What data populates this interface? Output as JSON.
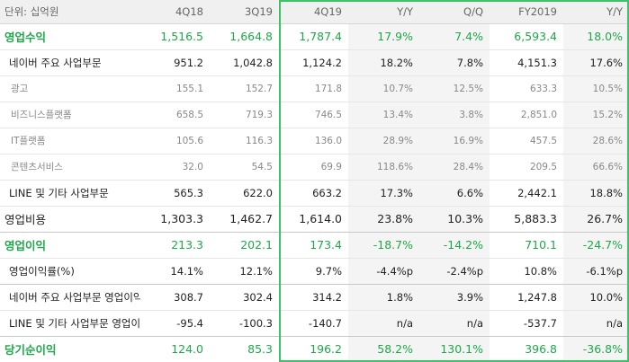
{
  "header": {
    "unit": "단위: 십억원",
    "cols": [
      "4Q18",
      "3Q19",
      "4Q19",
      "Y/Y",
      "Q/Q",
      "FY2019",
      "Y/Y"
    ]
  },
  "rows": [
    {
      "label": "영업수익",
      "values": [
        "1,516.5",
        "1,664.8",
        "1,787.4",
        "17.9%",
        "7.4%",
        "6,593.4",
        "18.0%"
      ]
    },
    {
      "label": "네이버 주요 사업부문",
      "values": [
        "951.2",
        "1,042.8",
        "1,124.2",
        "18.2%",
        "7.8%",
        "4,151.3",
        "17.6%"
      ]
    },
    {
      "label": "광고",
      "values": [
        "155.1",
        "152.7",
        "171.8",
        "10.7%",
        "12.5%",
        "633.3",
        "10.5%"
      ]
    },
    {
      "label": "비즈니스플랫폼",
      "values": [
        "658.5",
        "719.3",
        "746.5",
        "13.4%",
        "3.8%",
        "2,851.0",
        "15.2%"
      ]
    },
    {
      "label": "IT플랫폼",
      "values": [
        "105.6",
        "116.3",
        "136.0",
        "28.9%",
        "16.9%",
        "457.5",
        "28.6%"
      ]
    },
    {
      "label": "콘텐츠서비스",
      "values": [
        "32.0",
        "54.5",
        "69.9",
        "118.6%",
        "28.4%",
        "209.5",
        "66.6%"
      ]
    },
    {
      "label": "LINE 및 기타 사업부문",
      "values": [
        "565.3",
        "622.0",
        "663.2",
        "17.3%",
        "6.6%",
        "2,442.1",
        "18.8%"
      ]
    },
    {
      "label": "영업비용",
      "values": [
        "1,303.3",
        "1,462.7",
        "1,614.0",
        "23.8%",
        "10.3%",
        "5,883.3",
        "26.7%"
      ]
    },
    {
      "label": "영업이익",
      "values": [
        "213.3",
        "202.1",
        "173.4",
        "-18.7%",
        "-14.2%",
        "710.1",
        "-24.7%"
      ]
    },
    {
      "label": "영업이익률(%)",
      "values": [
        "14.1%",
        "12.1%",
        "9.7%",
        "-4.4%p",
        "-2.4%p",
        "10.8%",
        "-6.1%p"
      ]
    },
    {
      "label": "네이버 주요 사업부문 영업이익",
      "values": [
        "308.7",
        "302.4",
        "314.2",
        "1.8%",
        "3.9%",
        "1,247.8",
        "10.0%"
      ]
    },
    {
      "label": "LINE 및 기타 사업부문 영업이익",
      "values": [
        "-95.4",
        "-100.3",
        "-140.7",
        "n/a",
        "n/a",
        "-537.7",
        "n/a"
      ]
    },
    {
      "label": "당기순이익",
      "values": [
        "124.0",
        "85.3",
        "196.2",
        "58.2%",
        "130.1%",
        "396.8",
        "-36.8%"
      ]
    }
  ],
  "colors": {
    "accent_green": "#1ea84a",
    "highlight_border": "#3cc36a"
  }
}
